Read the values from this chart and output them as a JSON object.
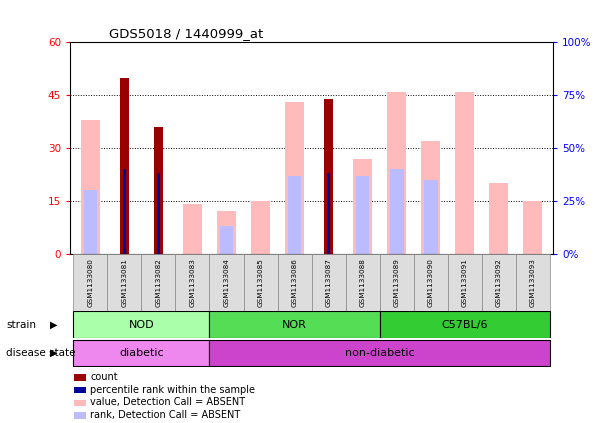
{
  "title": "GDS5018 / 1440999_at",
  "samples": [
    "GSM1133080",
    "GSM1133081",
    "GSM1133082",
    "GSM1133083",
    "GSM1133084",
    "GSM1133085",
    "GSM1133086",
    "GSM1133087",
    "GSM1133088",
    "GSM1133089",
    "GSM1133090",
    "GSM1133091",
    "GSM1133092",
    "GSM1133093"
  ],
  "count_values": [
    0,
    50,
    36,
    0,
    0,
    0,
    0,
    44,
    0,
    0,
    0,
    0,
    0,
    0
  ],
  "percentile_values": [
    0,
    24,
    23,
    0,
    0,
    0,
    0,
    23,
    0,
    0,
    0,
    0,
    0,
    0
  ],
  "value_absent": [
    38,
    0,
    0,
    14,
    12,
    15,
    43,
    0,
    27,
    46,
    32,
    46,
    20,
    15
  ],
  "rank_absent": [
    18,
    0,
    0,
    0,
    8,
    0,
    22,
    0,
    22,
    24,
    21,
    0,
    0,
    0
  ],
  "ylim_left": [
    0,
    60
  ],
  "ylim_right": [
    0,
    100
  ],
  "yticks_left": [
    0,
    15,
    30,
    45,
    60
  ],
  "yticks_right": [
    0,
    25,
    50,
    75,
    100
  ],
  "ytick_labels_left": [
    "0",
    "15",
    "30",
    "45",
    "60"
  ],
  "ytick_labels_right": [
    "0%",
    "25%",
    "50%",
    "75%",
    "100%"
  ],
  "strain_groups": [
    {
      "label": "NOD",
      "start": 0,
      "end": 4,
      "color": "#AAFFAA"
    },
    {
      "label": "NOR",
      "start": 4,
      "end": 9,
      "color": "#55DD55"
    },
    {
      "label": "C57BL/6",
      "start": 9,
      "end": 14,
      "color": "#33CC33"
    }
  ],
  "disease_groups": [
    {
      "label": "diabetic",
      "start": 0,
      "end": 4,
      "color": "#EE88EE"
    },
    {
      "label": "non-diabetic",
      "start": 4,
      "end": 14,
      "color": "#CC44CC"
    }
  ],
  "color_count": "#990000",
  "color_percentile": "#000099",
  "color_value_absent": "#FFBBBB",
  "color_rank_absent": "#BBBBFF",
  "legend_items": [
    {
      "color": "#990000",
      "label": "count"
    },
    {
      "color": "#000099",
      "label": "percentile rank within the sample"
    },
    {
      "color": "#FFBBBB",
      "label": "value, Detection Call = ABSENT"
    },
    {
      "color": "#BBBBFF",
      "label": "rank, Detection Call = ABSENT"
    }
  ],
  "fig_width": 6.08,
  "fig_height": 4.23,
  "dpi": 100
}
